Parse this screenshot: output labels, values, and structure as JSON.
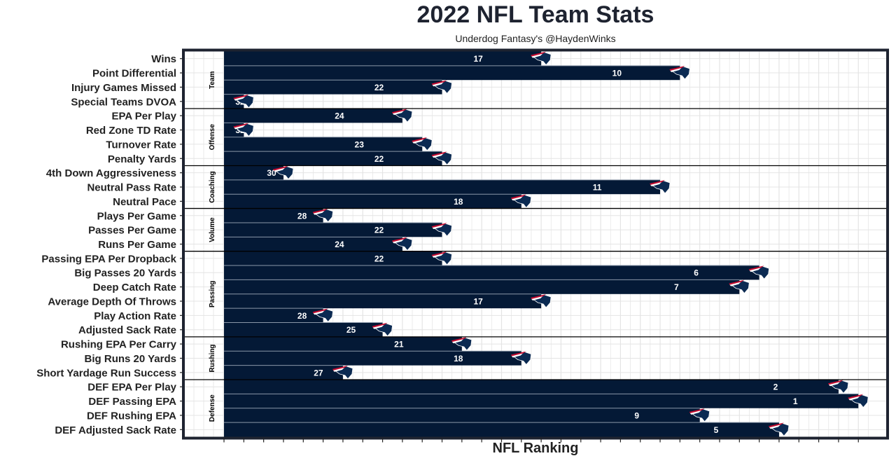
{
  "chart_data": {
    "type": "bar",
    "orientation": "horizontal",
    "title": "2022 NFL Team Stats",
    "subtitle": "Underdog Fantasy's @HaydenWinks",
    "xlabel": "NFL Ranking",
    "ylabel": "",
    "note": "Bar length = 33 - rank (rank 1 longest); label shows rank",
    "xlim": [
      0,
      32.5
    ],
    "colors": {
      "bar": "#041936",
      "panel_border": "#1e2330",
      "grid": "#e4e4e4",
      "separator": "#8a97a8"
    },
    "groups": [
      {
        "name": "Team",
        "categories": [
          "Wins",
          "Point Differential",
          "Injury Games Missed",
          "Special Teams DVOA"
        ],
        "ranks": [
          17,
          10,
          22,
          32
        ]
      },
      {
        "name": "Offense",
        "categories": [
          "EPA Per Play",
          "Red Zone TD Rate",
          "Turnover Rate",
          "Penalty Yards"
        ],
        "ranks": [
          24,
          32,
          23,
          22
        ]
      },
      {
        "name": "Coaching",
        "categories": [
          "4th Down Aggressiveness",
          "Neutral Pass Rate",
          "Neutral Pace"
        ],
        "ranks": [
          30,
          11,
          18
        ]
      },
      {
        "name": "Volume",
        "categories": [
          "Plays Per Game",
          "Passes Per Game",
          "Runs Per Game"
        ],
        "ranks": [
          28,
          22,
          24
        ]
      },
      {
        "name": "Passing",
        "categories": [
          "Passing EPA Per Dropback",
          "Big Passes 20 Yards",
          "Deep Catch Rate",
          "Average Depth Of Throws",
          "Play Action Rate",
          "Adjusted Sack Rate"
        ],
        "ranks": [
          22,
          6,
          7,
          17,
          28,
          25
        ]
      },
      {
        "name": "Rushing",
        "categories": [
          "Rushing EPA Per Carry",
          "Big Runs 20 Yards",
          "Short Yardage Run Success"
        ],
        "ranks": [
          21,
          18,
          27
        ]
      },
      {
        "name": "Defense",
        "categories": [
          "DEF EPA Per Play",
          "DEF Passing EPA",
          "DEF Rushing EPA",
          "DEF Adjusted Sack Rate"
        ],
        "ranks": [
          2,
          1,
          9,
          5
        ]
      }
    ]
  }
}
